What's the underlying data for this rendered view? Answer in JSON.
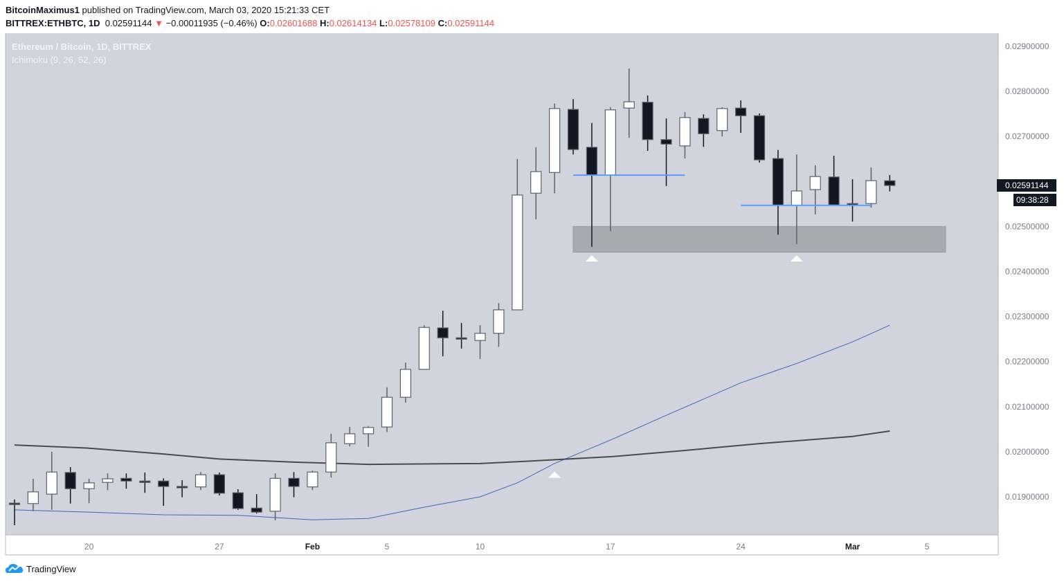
{
  "header": {
    "author": "BitcoinMaximus1",
    "published": "published on TradingView.com, March 03, 2020 15:21:33 CET",
    "symbol": "BITTREX:ETHBTC, 1D",
    "last": "0.02591144",
    "change": "−0.00011935 (−0.46%)",
    "o_label": "O:",
    "o": "0.02601688",
    "h_label": "H:",
    "h": "0.02614134",
    "l_label": "L:",
    "l": "0.02578109",
    "c_label": "C:",
    "c": "0.02591144",
    "down_arrow_icon": "triangle-down",
    "down_color": "#ef5350"
  },
  "legend": {
    "title": "Ethereum / Bitcoin, 1D, BITTREX",
    "indicator": "Ichimoku (9, 26, 52, 26)"
  },
  "price_axis": {
    "labels": [
      "0.02900000",
      "0.02800000",
      "0.02700000",
      "0.02500000",
      "0.02400000",
      "0.02300000",
      "0.02200000",
      "0.02100000",
      "0.02000000",
      "0.01900000"
    ],
    "last_price": "0.02591144",
    "countdown": "09:38:28"
  },
  "footer": {
    "brand": "TradingView",
    "logo_icon": "tradingview-cloud"
  },
  "chart_data": {
    "type": "candlestick",
    "ylim": [
      0.01815,
      0.02915
    ],
    "grid": false,
    "colors": {
      "background": "#d1d4dc",
      "up": "#ffffff",
      "down": "#131722",
      "wick": "#5d606b",
      "line_blue": "#3d68b4",
      "line_dark": "#4a4a4e",
      "level": "#5b9cf6",
      "zone": "#a8aab2"
    },
    "x_ticks": [
      {
        "date": "2020-01-20",
        "label": "20"
      },
      {
        "date": "2020-01-27",
        "label": "27"
      },
      {
        "date": "2020-02-01",
        "label": "Feb"
      },
      {
        "date": "2020-02-05",
        "label": "5"
      },
      {
        "date": "2020-02-10",
        "label": "10"
      },
      {
        "date": "2020-02-17",
        "label": "17"
      },
      {
        "date": "2020-02-24",
        "label": "24"
      },
      {
        "date": "2020-03-01",
        "label": "Mar"
      },
      {
        "date": "2020-03-05",
        "label": "5"
      }
    ],
    "y_ticks": [
      0.029,
      0.028,
      0.027,
      0.025,
      0.024,
      0.023,
      0.022,
      0.021,
      0.02,
      0.019
    ],
    "candles": [
      [
        "2020-01-16",
        0.01886,
        0.01894,
        0.01837,
        0.01883
      ],
      [
        "2020-01-17",
        0.01885,
        0.0194,
        0.01868,
        0.01911
      ],
      [
        "2020-01-18",
        0.01906,
        0.02,
        0.01871,
        0.01955
      ],
      [
        "2020-01-19",
        0.01954,
        0.01966,
        0.01885,
        0.01918
      ],
      [
        "2020-01-20",
        0.01918,
        0.0194,
        0.01886,
        0.01931
      ],
      [
        "2020-01-21",
        0.01932,
        0.01952,
        0.01915,
        0.0194
      ],
      [
        "2020-01-22",
        0.01941,
        0.01952,
        0.01918,
        0.01935
      ],
      [
        "2020-01-23",
        0.01935,
        0.01954,
        0.01909,
        0.01934
      ],
      [
        "2020-01-24",
        0.01935,
        0.01941,
        0.0188,
        0.01923
      ],
      [
        "2020-01-25",
        0.01923,
        0.01937,
        0.01899,
        0.01922
      ],
      [
        "2020-01-26",
        0.01922,
        0.01955,
        0.01915,
        0.01949
      ],
      [
        "2020-01-27",
        0.01949,
        0.01954,
        0.01903,
        0.01908
      ],
      [
        "2020-01-28",
        0.01909,
        0.01917,
        0.01871,
        0.01874
      ],
      [
        "2020-01-29",
        0.01875,
        0.01906,
        0.01863,
        0.01866
      ],
      [
        "2020-01-30",
        0.01868,
        0.01952,
        0.01848,
        0.01941
      ],
      [
        "2020-01-31",
        0.01941,
        0.01955,
        0.01899,
        0.01923
      ],
      [
        "2020-02-01",
        0.01922,
        0.01958,
        0.01915,
        0.01955
      ],
      [
        "2020-02-02",
        0.01955,
        0.0204,
        0.01943,
        0.0202
      ],
      [
        "2020-02-03",
        0.02018,
        0.02055,
        0.02012,
        0.0204
      ],
      [
        "2020-02-04",
        0.0204,
        0.02057,
        0.02011,
        0.02054
      ],
      [
        "2020-02-05",
        0.02055,
        0.02143,
        0.02044,
        0.02121
      ],
      [
        "2020-02-06",
        0.02121,
        0.02198,
        0.02109,
        0.02183
      ],
      [
        "2020-02-07",
        0.02183,
        0.02281,
        0.02182,
        0.02276
      ],
      [
        "2020-02-08",
        0.02275,
        0.02313,
        0.02212,
        0.02253
      ],
      [
        "2020-02-09",
        0.02253,
        0.02286,
        0.02229,
        0.0225
      ],
      [
        "2020-02-10",
        0.02247,
        0.02281,
        0.02206,
        0.02263
      ],
      [
        "2020-02-11",
        0.02263,
        0.0233,
        0.02233,
        0.02315
      ],
      [
        "2020-02-12",
        0.02315,
        0.0265,
        0.02314,
        0.0257
      ],
      [
        "2020-02-13",
        0.02574,
        0.02676,
        0.02516,
        0.02622
      ],
      [
        "2020-02-14",
        0.0262,
        0.02773,
        0.02574,
        0.02762
      ],
      [
        "2020-02-15",
        0.0276,
        0.02783,
        0.0266,
        0.02671
      ],
      [
        "2020-02-16",
        0.02676,
        0.0273,
        0.02455,
        0.02614
      ],
      [
        "2020-02-17",
        0.02614,
        0.02765,
        0.0249,
        0.02759
      ],
      [
        "2020-02-18",
        0.02763,
        0.02851,
        0.02697,
        0.02777
      ],
      [
        "2020-02-19",
        0.02776,
        0.02791,
        0.02668,
        0.02693
      ],
      [
        "2020-02-20",
        0.02693,
        0.0274,
        0.0259,
        0.02683
      ],
      [
        "2020-02-21",
        0.02679,
        0.02754,
        0.02651,
        0.02742
      ],
      [
        "2020-02-22",
        0.0274,
        0.02749,
        0.02677,
        0.02706
      ],
      [
        "2020-02-23",
        0.02713,
        0.02765,
        0.027,
        0.02762
      ],
      [
        "2020-02-24",
        0.02763,
        0.0278,
        0.02708,
        0.02746
      ],
      [
        "2020-02-25",
        0.02746,
        0.02751,
        0.02642,
        0.02648
      ],
      [
        "2020-02-26",
        0.02651,
        0.0267,
        0.02482,
        0.02547
      ],
      [
        "2020-02-27",
        0.02547,
        0.0266,
        0.02461,
        0.02579
      ],
      [
        "2020-02-28",
        0.02582,
        0.02636,
        0.02527,
        0.02611
      ],
      [
        "2020-02-29",
        0.0261,
        0.02657,
        0.02547,
        0.02548
      ],
      [
        "2020-03-01",
        0.02551,
        0.02605,
        0.02511,
        0.02549
      ],
      [
        "2020-03-02",
        0.02551,
        0.02631,
        0.02542,
        0.02602
      ],
      [
        "2020-03-03",
        0.02601688,
        0.02614134,
        0.02578109,
        0.02591144
      ]
    ],
    "lines": [
      {
        "color": "#3d68b4",
        "points": [
          [
            "2020-01-16",
            0.01871
          ],
          [
            "2020-01-20",
            0.01866
          ],
          [
            "2020-01-24",
            0.0186
          ],
          [
            "2020-01-28",
            0.01859
          ],
          [
            "2020-02-01",
            0.01849
          ],
          [
            "2020-02-04",
            0.01852
          ],
          [
            "2020-02-07",
            0.01877
          ],
          [
            "2020-02-10",
            0.019
          ],
          [
            "2020-02-12",
            0.01931
          ],
          [
            "2020-02-14",
            0.01974
          ],
          [
            "2020-02-17",
            0.02026
          ],
          [
            "2020-02-20",
            0.02081
          ],
          [
            "2020-02-24",
            0.02153
          ],
          [
            "2020-02-27",
            0.02196
          ],
          [
            "2020-03-01",
            0.02244
          ],
          [
            "2020-03-03",
            0.02281
          ]
        ]
      },
      {
        "color": "#4a4a4e",
        "points": [
          [
            "2020-01-16",
            0.02015
          ],
          [
            "2020-01-20",
            0.02008
          ],
          [
            "2020-01-24",
            0.01995
          ],
          [
            "2020-01-27",
            0.01984
          ],
          [
            "2020-01-31",
            0.01977
          ],
          [
            "2020-02-04",
            0.01972
          ],
          [
            "2020-02-10",
            0.01974
          ],
          [
            "2020-02-13",
            0.0198
          ],
          [
            "2020-02-17",
            0.01989
          ],
          [
            "2020-02-21",
            0.02003
          ],
          [
            "2020-02-25",
            0.02018
          ],
          [
            "2020-03-01",
            0.02034
          ],
          [
            "2020-03-03",
            0.02046
          ]
        ]
      }
    ],
    "levels": [
      {
        "from": "2020-02-15",
        "to": "2020-02-21",
        "price": 0.02614
      },
      {
        "from": "2020-02-24",
        "to": "2020-03-02",
        "price": 0.02547
      }
    ],
    "zone": {
      "from": "2020-02-15",
      "to": "2020-03-06",
      "top": 0.025,
      "bottom": 0.02443
    },
    "markers": [
      {
        "date": "2020-02-14",
        "price": 0.0195,
        "shape": "triangle-up"
      },
      {
        "date": "2020-02-16",
        "price": 0.0243,
        "shape": "triangle-up"
      },
      {
        "date": "2020-02-27",
        "price": 0.0243,
        "shape": "triangle-up"
      }
    ]
  }
}
